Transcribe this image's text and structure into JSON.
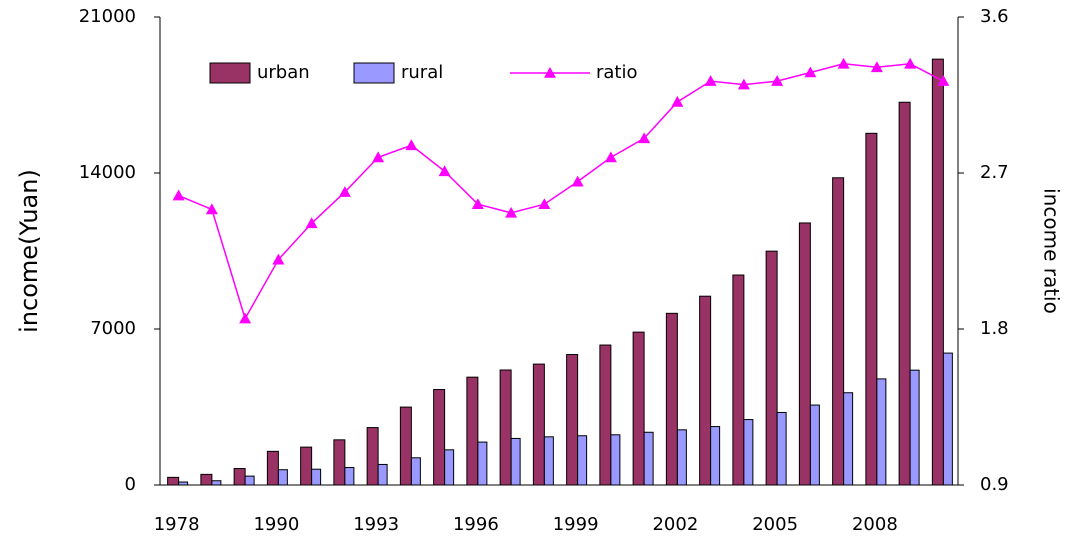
{
  "chart_data": {
    "type": "bar",
    "categories": [
      "1978",
      null,
      null,
      "1990",
      null,
      null,
      "1993",
      null,
      null,
      "1996",
      null,
      null,
      "1999",
      null,
      null,
      "2002",
      null,
      null,
      "2005",
      null,
      null,
      "2008",
      null,
      null
    ],
    "series": [
      {
        "name": "urban",
        "type": "bar",
        "color": "#993366",
        "values": [
          343,
          477,
          739,
          1510,
          1700,
          2027,
          2577,
          3496,
          4283,
          4839,
          5160,
          5425,
          5854,
          6280,
          6860,
          7703,
          8472,
          9422,
          10493,
          11759,
          13786,
          15781,
          17175,
          19109
        ]
      },
      {
        "name": "rural",
        "type": "bar",
        "color": "#9999ff",
        "values": [
          134,
          191,
          398,
          686,
          709,
          784,
          922,
          1221,
          1578,
          1926,
          2090,
          2162,
          2210,
          2253,
          2366,
          2476,
          2622,
          2936,
          3255,
          3587,
          4140,
          4761,
          5153,
          5919
        ]
      },
      {
        "name": "ratio",
        "type": "line",
        "axis": "y2",
        "color": "#ff00ff",
        "values": [
          2.57,
          2.49,
          1.86,
          2.2,
          2.41,
          2.59,
          2.79,
          2.86,
          2.71,
          2.52,
          2.47,
          2.52,
          2.65,
          2.79,
          2.9,
          3.11,
          3.23,
          3.21,
          3.23,
          3.28,
          3.33,
          3.31,
          3.33,
          3.23
        ]
      }
    ],
    "ylabel": "income(Yuan)",
    "y2label": "income ratio",
    "ylim": [
      0,
      21000
    ],
    "yticks": [
      0,
      7000,
      14000,
      21000
    ],
    "y2lim": [
      0.9,
      3.6
    ],
    "y2ticks": [
      0.9,
      1.8,
      2.7,
      3.6
    ],
    "legend": "top-left"
  }
}
